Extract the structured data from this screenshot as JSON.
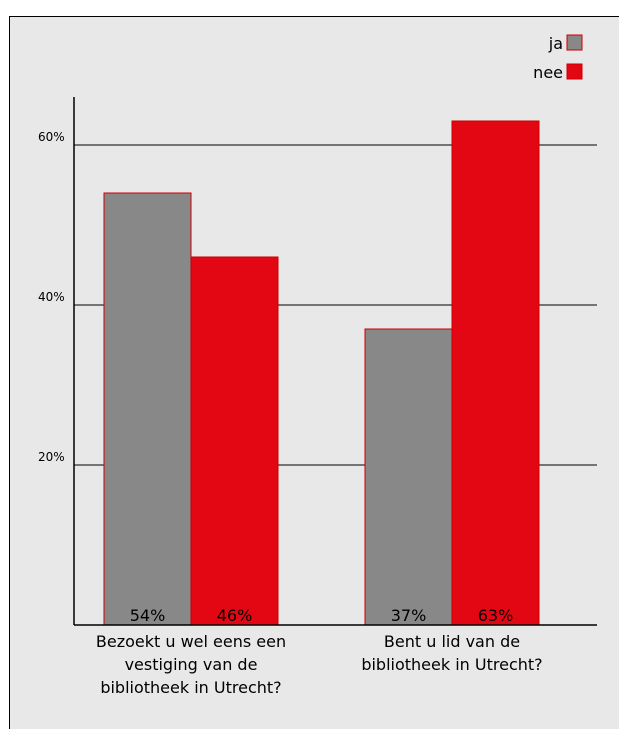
{
  "chart_data": {
    "type": "bar",
    "categories": [
      [
        "Bezoekt u wel eens een",
        "vestiging van de",
        "bibliotheek in Utrecht?"
      ],
      [
        "Bent u lid van de",
        "bibliotheek in Utrecht?"
      ]
    ],
    "series": [
      {
        "name": "ja",
        "values": [
          54,
          37
        ],
        "labels": [
          "54%",
          "37%"
        ],
        "color": "#888888"
      },
      {
        "name": "nee",
        "values": [
          46,
          63
        ],
        "labels": [
          "46%",
          "63%"
        ],
        "color": "#e30613"
      }
    ],
    "y_ticks": [
      {
        "value": 20,
        "label": "20%"
      },
      {
        "value": 40,
        "label": "40%"
      },
      {
        "value": 60,
        "label": "60%"
      }
    ],
    "ylim": [
      0,
      66
    ],
    "grid": true,
    "legend_position": "top-right"
  },
  "colors": {
    "background": "#e8e8e8",
    "ja": "#888888",
    "nee": "#e30613",
    "bar_outline": "#cc0000"
  }
}
